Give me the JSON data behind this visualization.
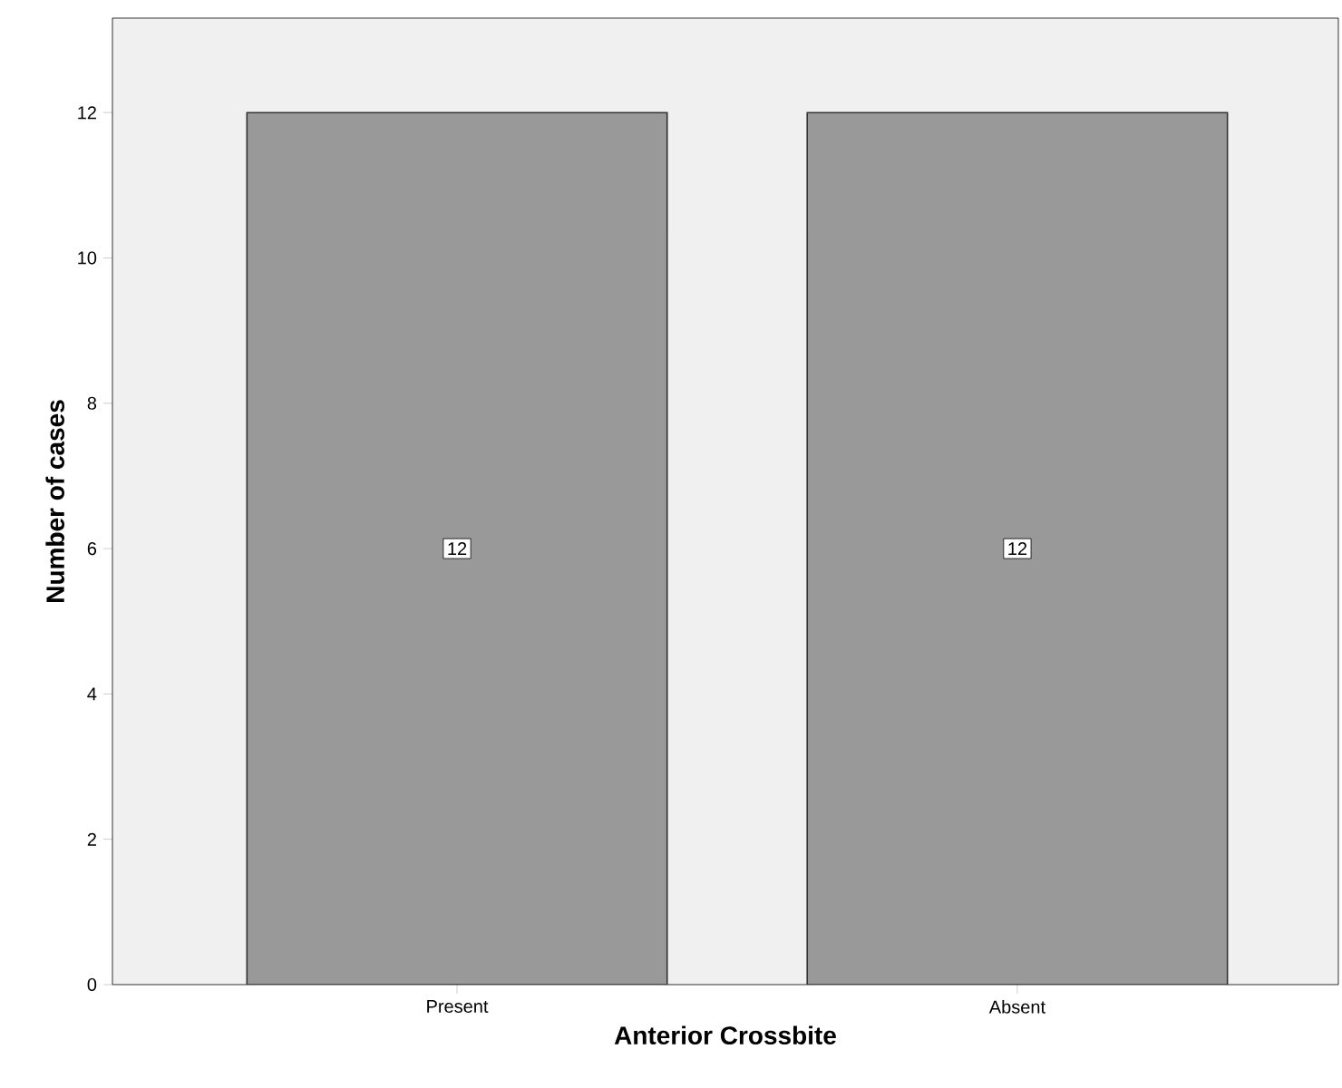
{
  "chart_data": {
    "type": "bar",
    "xlabel": "Anterior Crossbite",
    "ylabel": "Number of cases",
    "categories": [
      "Present",
      "Absent"
    ],
    "values": [
      12,
      12
    ],
    "color": "#999999",
    "ylim": [
      0,
      13.3
    ],
    "yticks": [
      0,
      2,
      4,
      6,
      8,
      10,
      12
    ],
    "grid": false,
    "data_labels": true
  }
}
